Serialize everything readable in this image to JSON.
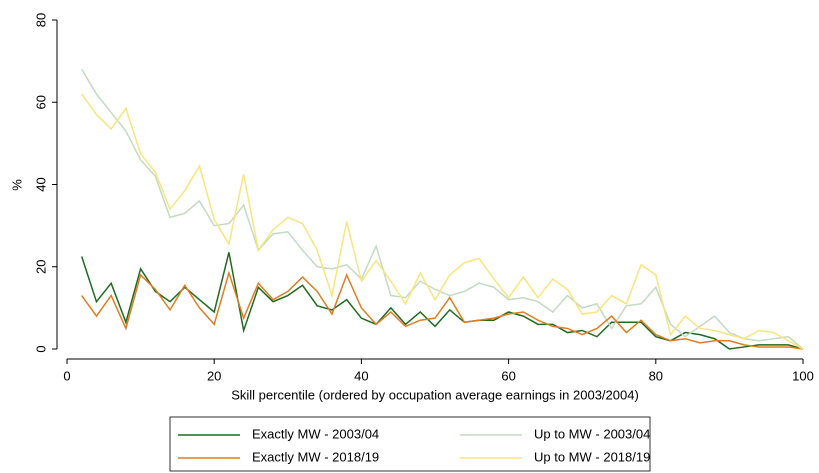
{
  "chart_data": {
    "type": "line",
    "x_label": "Skill percentile (ordered by occupation average earnings in 2003/2004)",
    "y_label": "%",
    "x": [
      2,
      4,
      6,
      8,
      10,
      12,
      14,
      16,
      18,
      20,
      22,
      24,
      26,
      28,
      30,
      32,
      34,
      36,
      38,
      40,
      42,
      44,
      46,
      48,
      50,
      52,
      54,
      56,
      58,
      60,
      62,
      64,
      66,
      68,
      70,
      72,
      74,
      76,
      78,
      80,
      82,
      84,
      86,
      88,
      90,
      92,
      94,
      96,
      98,
      100
    ],
    "series": [
      {
        "name": "Exactly MW - 2003/04",
        "color": "#1f6b1f",
        "values": [
          22.5,
          11.5,
          16,
          6.5,
          19.5,
          14,
          11.5,
          15,
          12,
          9,
          23.5,
          4.5,
          15,
          11.5,
          13,
          15.5,
          10.5,
          9.5,
          12,
          7.5,
          6,
          10,
          6,
          9,
          5.5,
          9.5,
          6.5,
          7,
          7,
          9,
          8,
          6,
          6,
          4,
          4.5,
          3,
          6.5,
          6.5,
          6.5,
          3,
          2,
          4,
          3.5,
          2.5,
          0,
          0.5,
          1,
          1,
          1,
          0
        ]
      },
      {
        "name": "Up to MW - 2003/04",
        "color": "#c3dac3",
        "values": [
          68,
          62,
          57.5,
          53,
          46,
          42,
          32,
          33,
          36,
          30,
          30.5,
          35,
          24,
          28,
          28.5,
          24,
          20,
          19.5,
          20.5,
          17,
          25,
          13,
          12.5,
          16.5,
          14.5,
          13,
          14,
          16,
          15,
          12,
          12.5,
          11.5,
          9,
          13,
          10,
          11,
          5,
          10.5,
          11,
          15,
          6,
          3,
          5.5,
          8,
          4,
          2.5,
          2,
          2.5,
          3,
          0
        ]
      },
      {
        "name": "Exactly MW - 2018/19",
        "color": "#e07d22",
        "values": [
          13,
          8,
          13,
          5,
          18,
          14.5,
          9.5,
          15.5,
          10,
          6,
          18.5,
          7.5,
          16,
          12,
          14,
          17.5,
          14,
          8.5,
          18,
          10,
          6,
          9,
          5.5,
          7,
          7.5,
          12.5,
          6.5,
          7,
          7.5,
          8.5,
          9,
          7,
          5.5,
          5,
          3.5,
          5,
          8,
          4,
          7,
          3.5,
          2,
          2.5,
          1.5,
          2,
          2,
          1,
          0.5,
          0.5,
          0.5,
          0
        ]
      },
      {
        "name": "Up to MW - 2018/19",
        "color": "#f8e57c",
        "values": [
          62,
          57,
          53.5,
          58.5,
          47.5,
          43,
          34,
          38.5,
          44.5,
          31.5,
          25.5,
          42.5,
          24,
          29,
          32,
          30.5,
          24,
          13,
          31,
          16.5,
          21.5,
          16.5,
          11,
          18.5,
          12,
          18,
          21,
          22,
          17,
          12.5,
          17.5,
          12.5,
          17,
          14.5,
          8.5,
          9,
          13,
          11,
          20.5,
          18,
          3.5,
          8,
          5,
          4.5,
          3.5,
          2.5,
          4.5,
          4,
          2,
          0
        ]
      }
    ],
    "xlim": [
      0,
      100
    ],
    "xticks": [
      0,
      20,
      40,
      60,
      80,
      100
    ],
    "ylim": [
      0,
      80
    ],
    "yticks": [
      0,
      20,
      40,
      60,
      80
    ],
    "grid": false
  }
}
